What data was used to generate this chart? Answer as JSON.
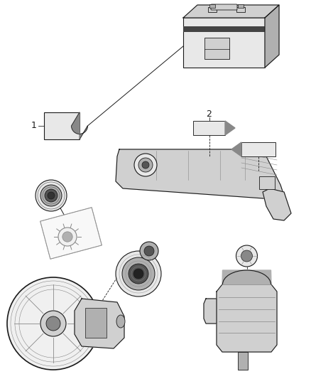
{
  "background_color": "#ffffff",
  "figsize": [
    4.38,
    5.33
  ],
  "dpi": 100,
  "lc": "#1a1a1a",
  "label1": "1",
  "label2": "2",
  "gray1": "#e8e8e8",
  "gray2": "#d0d0d0",
  "gray3": "#b0b0b0",
  "gray4": "#888888",
  "gray5": "#555555"
}
